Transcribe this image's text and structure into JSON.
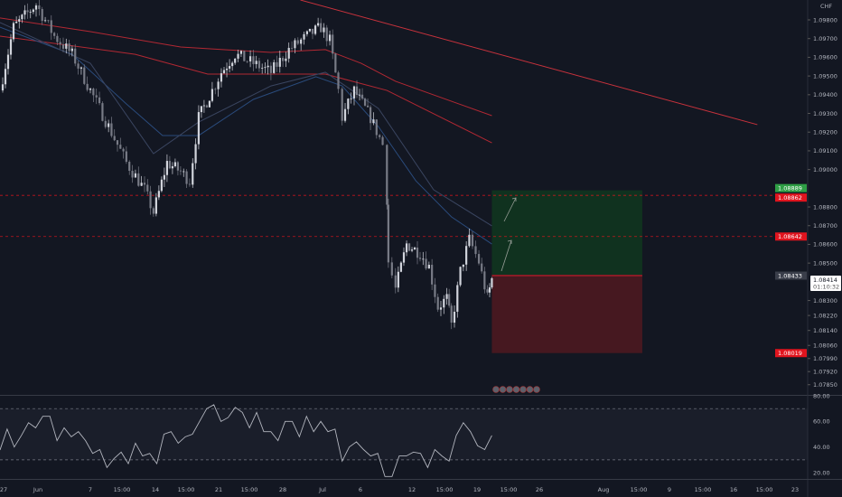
{
  "chart_data": {
    "type": "candlestick",
    "currency_label": "CHF",
    "price_axis": {
      "ticks": [
        "1.09800",
        "1.09700",
        "1.09600",
        "1.09500",
        "1.09400",
        "1.09300",
        "1.09200",
        "1.09100",
        "1.09000",
        "1.08800",
        "1.08700",
        "1.08600",
        "1.08500",
        "1.08300",
        "1.08220",
        "1.08140",
        "1.08060",
        "1.07990",
        "1.07920",
        "1.07850"
      ],
      "ylim": [
        1.078,
        1.099
      ]
    },
    "time_axis": {
      "ticks": [
        "27",
        "Jun",
        "7",
        "15:00",
        "14",
        "15:00",
        "21",
        "15:00",
        "28",
        "Jul",
        "6",
        "12",
        "15:00",
        "19",
        "15:00",
        "26",
        "Aug",
        "15:00",
        "9",
        "15:00",
        "16",
        "15:00",
        "23"
      ]
    },
    "price_path": [
      [
        "05-26 18:00",
        1.09423
      ],
      [
        "05-28 15:00",
        1.09761
      ],
      [
        "05-31 18:00",
        1.09882
      ],
      [
        "06-02 21:00",
        1.09713
      ],
      [
        "06-04 22:00",
        1.09616
      ],
      [
        "06-07 00:00",
        1.09423
      ],
      [
        "06-08 23:00",
        1.0923
      ],
      [
        "06-10 21:00",
        1.09037
      ],
      [
        "06-12 20:00",
        1.08892
      ],
      [
        "06-13 19:00",
        1.08771
      ],
      [
        "06-15 07:00",
        1.09037
      ],
      [
        "06-16 19:00",
        1.08989
      ],
      [
        "06-17 19:00",
        1.0894
      ],
      [
        "06-18 19:00",
        1.09278
      ],
      [
        "06-20 07:00",
        1.09423
      ],
      [
        "06-21 07:00",
        1.0952
      ],
      [
        "06-22 19:00",
        1.09616
      ],
      [
        "06-24 19:00",
        1.09568
      ],
      [
        "06-26 17:00",
        1.0952
      ],
      [
        "06-28 11:00",
        1.09641
      ],
      [
        "06-29 20:00",
        1.09713
      ],
      [
        "06-30 21:00",
        1.09761
      ],
      [
        "07-01 23:00",
        1.09689
      ],
      [
        "07-03 02:00",
        1.09423
      ],
      [
        "07-03 14:00",
        1.09278
      ],
      [
        "07-05 04:00",
        1.09423
      ],
      [
        "07-07 04:00",
        1.09278
      ],
      [
        "07-08 14:00",
        1.09133
      ],
      [
        "07-09 02:00",
        1.08844
      ],
      [
        "07-09 06:00",
        1.08506
      ],
      [
        "07-10 02:00",
        1.08361
      ],
      [
        "07-11 09:00",
        1.08602
      ],
      [
        "07-12 21:00",
        1.08554
      ],
      [
        "07-13 20:00",
        1.08481
      ],
      [
        "07-14 19:00",
        1.08264
      ],
      [
        "07-15 18:00",
        1.08312
      ],
      [
        "07-16 06:00",
        1.08167
      ],
      [
        "07-17 05:00",
        1.08457
      ],
      [
        "07-18 04:00",
        1.08626
      ],
      [
        "07-19 05:00",
        1.08506
      ],
      [
        "07-20 04:00",
        1.08312
      ],
      [
        "07-20 16:00",
        1.08414
      ]
    ],
    "moving_averages": [
      {
        "color": "#b22833",
        "points": [
          [
            "05-26 18:00",
            1.0981
          ],
          [
            "06-07 00:00",
            1.09737
          ],
          [
            "06-16 19:00",
            1.09655
          ],
          [
            "06-26 17:00",
            1.09626
          ],
          [
            "07-01 09:00",
            1.09641
          ],
          [
            "07-06 02:00",
            1.09568
          ],
          [
            "07-10 02:00",
            1.09472
          ],
          [
            "07-20 16:00",
            1.09288
          ]
        ]
      },
      {
        "color": "#b22833",
        "points": [
          [
            "05-26 18:00",
            1.09713
          ],
          [
            "06-11 20:00",
            1.09616
          ],
          [
            "06-19 19:00",
            1.0951
          ],
          [
            "07-01 09:00",
            1.0951
          ],
          [
            "07-09 02:00",
            1.09423
          ],
          [
            "07-20 16:00",
            1.09143
          ]
        ]
      },
      {
        "color": "#2a4b7c",
        "points": [
          [
            "05-26 18:00",
            1.09761
          ],
          [
            "06-04 22:00",
            1.09616
          ],
          [
            "06-10 21:00",
            1.09351
          ],
          [
            "06-14 19:00",
            1.09182
          ],
          [
            "06-18 19:00",
            1.09182
          ],
          [
            "06-24 19:00",
            1.09375
          ],
          [
            "06-30 12:00",
            1.09496
          ],
          [
            "07-03 14:00",
            1.09447
          ],
          [
            "07-08 02:00",
            1.0923
          ],
          [
            "07-12 10:00",
            1.0894
          ],
          [
            "07-16 06:00",
            1.08747
          ],
          [
            "07-20 16:00",
            1.08602
          ]
        ]
      },
      {
        "color": "#3a4560",
        "points": [
          [
            "05-26 18:00",
            1.09786
          ],
          [
            "06-07 00:00",
            1.09568
          ],
          [
            "06-13 19:00",
            1.09085
          ],
          [
            "06-18 19:00",
            1.09254
          ],
          [
            "06-26 17:00",
            1.09447
          ],
          [
            "07-01 09:00",
            1.0952
          ],
          [
            "07-08 02:00",
            1.09327
          ],
          [
            "07-14 08:00",
            1.08892
          ],
          [
            "07-20 16:00",
            1.08699
          ]
        ]
      }
    ],
    "trendline": {
      "color": "#c8323c",
      "from": [
        "06-29 08:00",
        1.09906
      ],
      "to": [
        "08-18 17:00",
        1.0924
      ]
    },
    "horizontal_lines": [
      {
        "price": 1.08862,
        "label": "1.08862",
        "color": "#f0141e"
      },
      {
        "price": 1.08642,
        "label": "1.08642",
        "color": "#f0141e"
      }
    ],
    "position": {
      "entry": 1.08433,
      "target": 1.08889,
      "stop": 1.08019,
      "start": "07-20 16:00",
      "end": "08-05 17:00",
      "entry_label": "1.08433",
      "target_label": "1.08889",
      "stop_label": "1.08019",
      "profit_color": "#10321f",
      "loss_color": "#461820"
    },
    "last_price": {
      "value": "1.08414",
      "countdown": "01:10:32"
    },
    "rsi": {
      "ticks": [
        "80.00",
        "60.00",
        "40.00",
        "20.00"
      ],
      "upper_band": 70,
      "lower_band": 30,
      "values": [
        37.7,
        54,
        40,
        49,
        59,
        55,
        64,
        64,
        45,
        55,
        48,
        52,
        45,
        35,
        38,
        24,
        31,
        36,
        27,
        43,
        33,
        35,
        27,
        50,
        52,
        43,
        48,
        50,
        60,
        70,
        73,
        60,
        63,
        71,
        67,
        55,
        67,
        52,
        52,
        45,
        60,
        60,
        48,
        64,
        52,
        60,
        52,
        54,
        29,
        40,
        44,
        38,
        33,
        35,
        17,
        17,
        33,
        33,
        36,
        35,
        24,
        38,
        33,
        29,
        49,
        59,
        52,
        41,
        38,
        49
      ]
    },
    "colors": {
      "background": "#131722",
      "candle_up": "#d1d4dc",
      "candle_down": "#787b86",
      "rsi_line": "#b2b5be"
    }
  }
}
